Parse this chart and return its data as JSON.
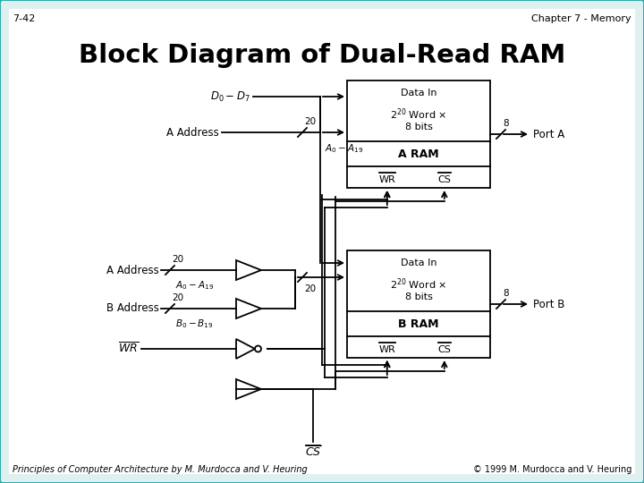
{
  "title": "Block Diagram of Dual-Read RAM",
  "header_left": "7-42",
  "header_right": "Chapter 7 - Memory",
  "footer_left": "Principles of Computer Architecture by M. Murdocca and V. Heuring",
  "footer_right": "© 1999 M. Murdocca and V. Heuring",
  "bg_color": "#dff0f0",
  "border_color": "#2aacac",
  "line_color": "#000000",
  "white": "#ffffff"
}
